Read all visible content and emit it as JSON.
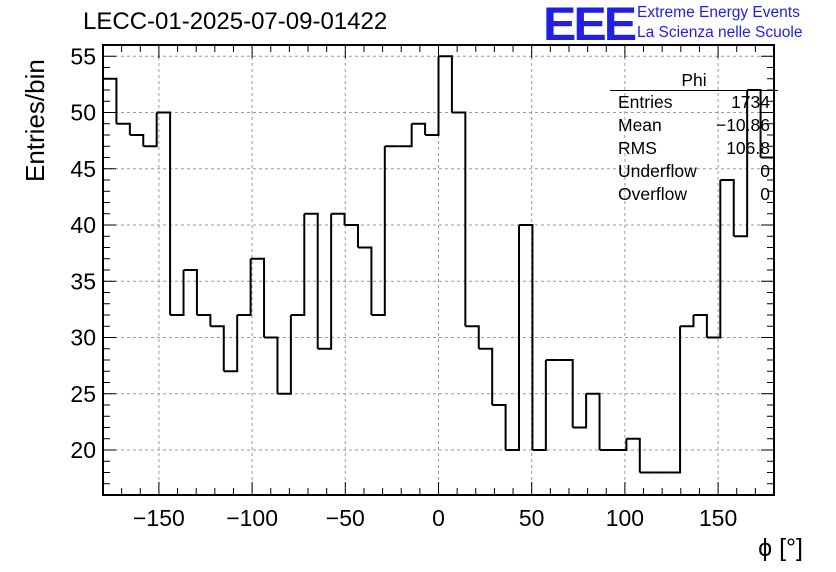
{
  "title": "LECC-01-2025-07-09-01422",
  "logo": {
    "mark": "EEE",
    "line1": "Extreme Energy Events",
    "line2": "La Scienza nelle Scuole"
  },
  "stats": {
    "title": "Phi",
    "rows": [
      {
        "label": "Entries",
        "value": "1734"
      },
      {
        "label": "Mean",
        "value": "−10.86"
      },
      {
        "label": "RMS",
        "value": "106.8"
      },
      {
        "label": "Underflow",
        "value": "0"
      },
      {
        "label": "Overflow",
        "value": "0"
      }
    ]
  },
  "chart_data": {
    "type": "bar",
    "title": "LECC-01-2025-07-09-01422",
    "xlabel": "ϕ [°]",
    "ylabel": "Entries/bin",
    "xlim": [
      -180,
      180
    ],
    "ylim": [
      16,
      56
    ],
    "bin_width": 7.2,
    "bin_start": -180,
    "values": [
      53,
      49,
      48,
      47,
      50,
      32,
      36,
      32,
      31,
      27,
      32,
      37,
      30,
      25,
      32,
      41,
      29,
      41,
      40,
      38,
      32,
      47,
      47,
      49,
      48,
      55,
      50,
      31,
      29,
      24,
      20,
      40,
      20,
      28,
      28,
      22,
      25,
      20,
      20,
      21,
      18,
      18,
      18,
      31,
      32,
      30,
      44,
      39,
      52,
      46
    ],
    "xticks": [
      -150,
      -100,
      -50,
      0,
      50,
      100,
      150
    ],
    "xtick_labels": [
      "−150",
      "−100",
      "−50",
      "0",
      "50",
      "100",
      "150"
    ],
    "yticks": [
      20,
      25,
      30,
      35,
      40,
      45,
      50,
      55
    ],
    "ytick_labels": [
      "20",
      "25",
      "30",
      "35",
      "40",
      "45",
      "50",
      "55"
    ],
    "grid": true,
    "legend": "none"
  }
}
